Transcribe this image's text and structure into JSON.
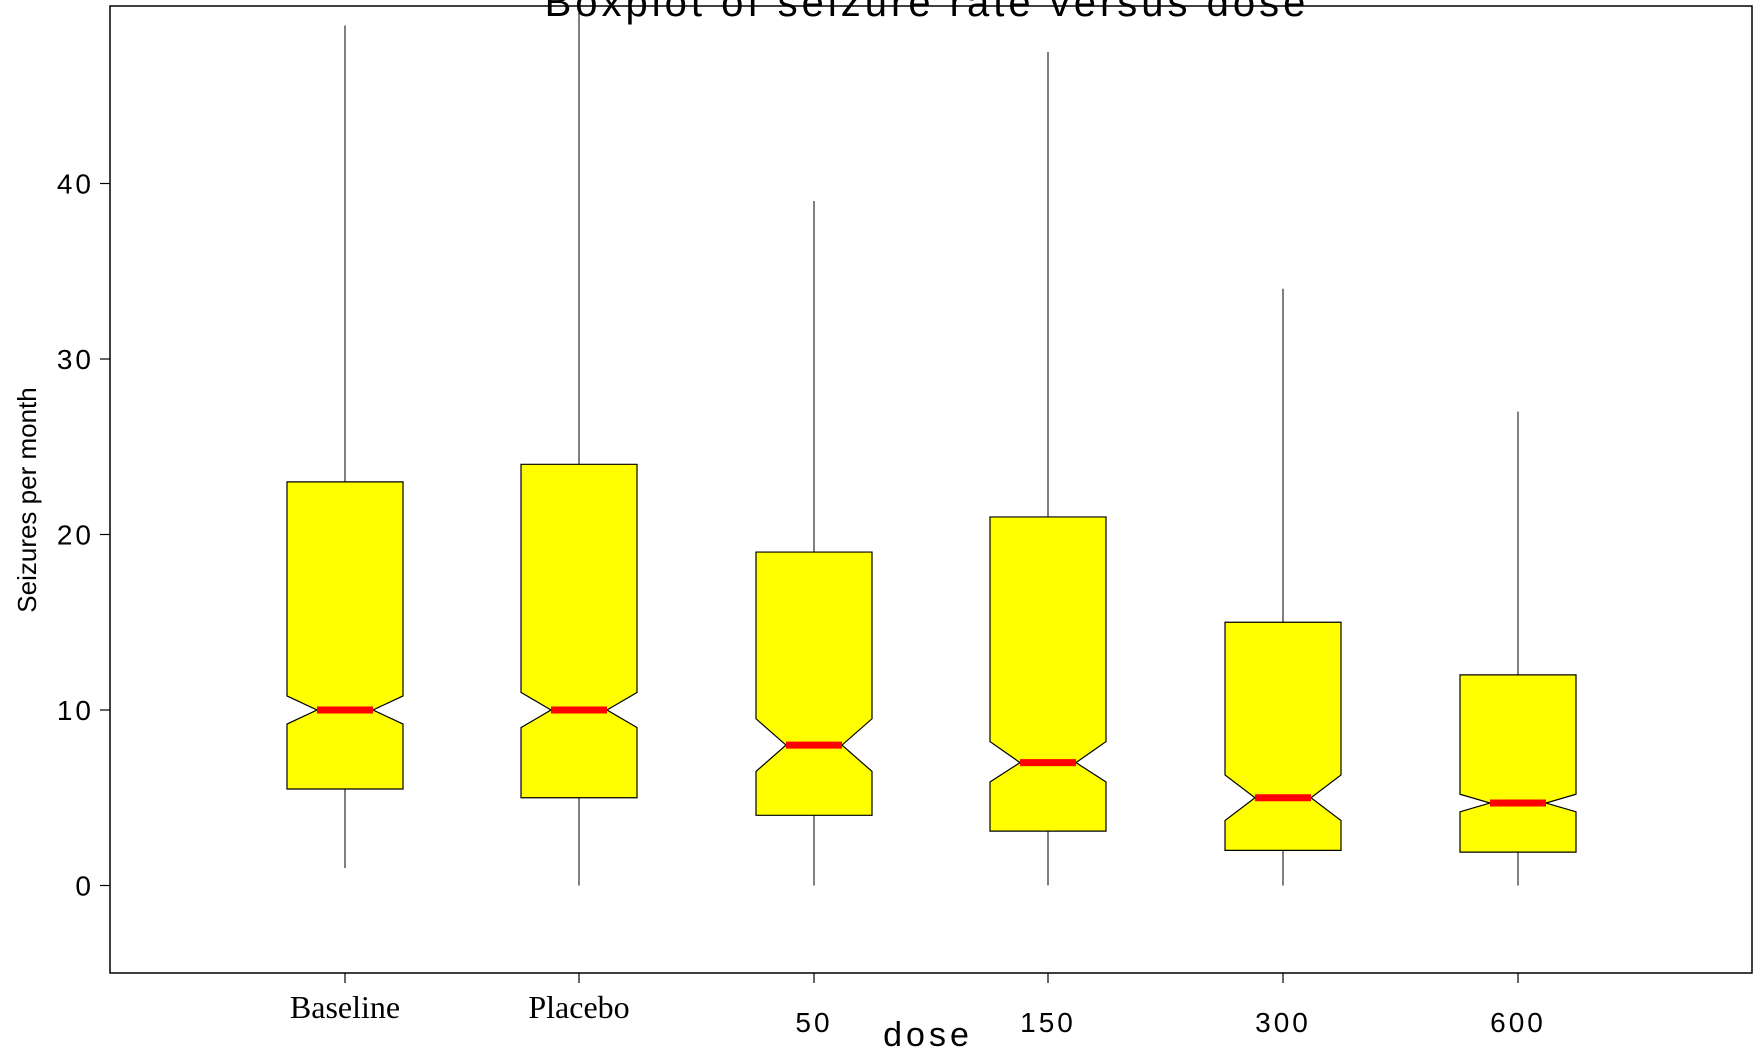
{
  "chart_data": {
    "type": "box",
    "notched": true,
    "title": "Boxplot of seizure rate versus dose",
    "xlabel": "dose",
    "ylabel": "Seizures per month",
    "ylim": [
      -5,
      49.5
    ],
    "yticks": [
      0,
      10,
      20,
      30,
      40
    ],
    "categories": [
      "Baseline",
      "Placebo",
      "50",
      "150",
      "300",
      "600"
    ],
    "boxes": [
      {
        "category": "Baseline",
        "whisker_low": 1,
        "q1": 5.5,
        "median": 10,
        "q3": 23,
        "whisker_high": 49,
        "notch_low": 9.2,
        "notch_high": 10.8
      },
      {
        "category": "Placebo",
        "whisker_low": 0,
        "q1": 5,
        "median": 10,
        "q3": 24,
        "whisker_high": 50,
        "notch_low": 9,
        "notch_high": 11
      },
      {
        "category": "50",
        "whisker_low": 0,
        "q1": 4,
        "median": 8,
        "q3": 19,
        "whisker_high": 39,
        "notch_low": 6.5,
        "notch_high": 9.5
      },
      {
        "category": "150",
        "whisker_low": 0,
        "q1": 3.1,
        "median": 7,
        "q3": 21,
        "whisker_high": 47.5,
        "notch_low": 5.9,
        "notch_high": 8.2
      },
      {
        "category": "300",
        "whisker_low": 0,
        "q1": 2,
        "median": 5,
        "q3": 15,
        "whisker_high": 34,
        "notch_low": 3.7,
        "notch_high": 6.3
      },
      {
        "category": "600",
        "whisker_low": 0,
        "q1": 1.9,
        "median": 4.7,
        "q3": 12,
        "whisker_high": 27,
        "notch_low": 4.2,
        "notch_high": 5.2
      }
    ],
    "colors": {
      "box_fill": "#ffff00",
      "median": "#ff0000",
      "outline": "#000000"
    },
    "grid": false
  }
}
